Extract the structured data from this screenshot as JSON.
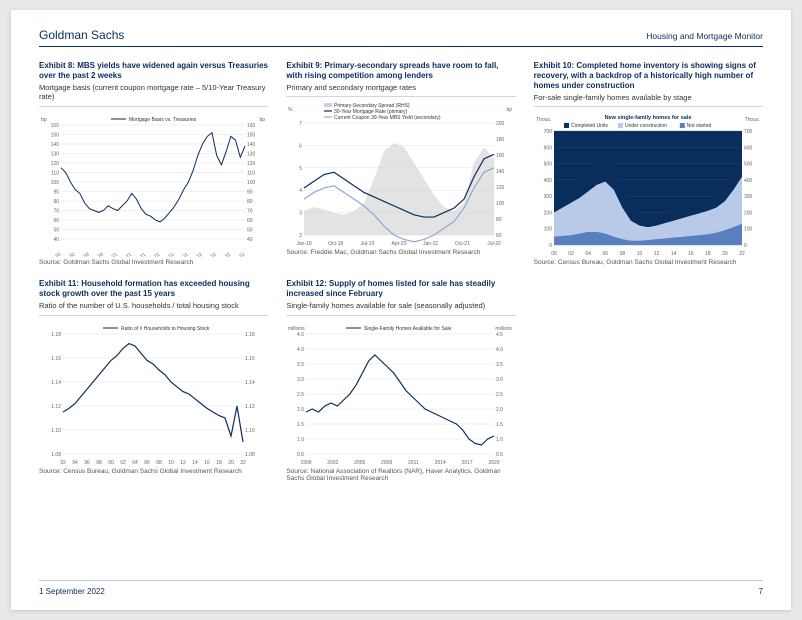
{
  "header": {
    "brand": "Goldman Sachs",
    "section": "Housing and Mortgage Monitor"
  },
  "footer": {
    "date": "1 September 2022",
    "page": "7"
  },
  "colors": {
    "navy": "#0a2e5c",
    "blue": "#2a5db0",
    "lightblue": "#8ea8d8",
    "grayfill": "#d0d0d0",
    "paleblue": "#b8cae8",
    "midblue": "#5a7fc0"
  },
  "ex8": {
    "title": "Exhibit 8: MBS yields have widened again versus Treasuries over the past 2 weeks",
    "sub": "Mortgage basis (current coupon mortgage rate – 5/10-Year Treasury rate)",
    "source": "Source: Goldman Sachs Global Investment Research",
    "type": "line",
    "legend": "Mortgage Basis vs. Treasuries",
    "yunit": "bp",
    "ylim": [
      40,
      160
    ],
    "ytick_step": 10,
    "xlabels": [
      "Jun-20",
      "Aug-20",
      "Oct-20",
      "Dec-20",
      "Feb-21",
      "Apr-21",
      "Jun-21",
      "Aug-21",
      "Oct-21",
      "Dec-21",
      "Feb-22",
      "Apr-22",
      "Jun-22",
      "Aug-22"
    ],
    "series": [
      115,
      110,
      100,
      92,
      88,
      78,
      72,
      70,
      68,
      70,
      75,
      72,
      70,
      75,
      80,
      88,
      82,
      72,
      66,
      64,
      60,
      58,
      62,
      68,
      74,
      82,
      92,
      100,
      112,
      128,
      140,
      148,
      152,
      128,
      118,
      132,
      148,
      144,
      126,
      138
    ]
  },
  "ex9": {
    "title": "Exhibit 9: Primary-secondary spreads have room to fall, with rising competition among lenders",
    "sub": "Primary and secondary mortgage rates",
    "source": "Source: Freddie Mac, Goldman Sachs Global Investment Research",
    "type": "line-dual",
    "yl_unit": "%",
    "yr_unit": "bp",
    "yl_lim": [
      2,
      7
    ],
    "yl_step": 1,
    "yr_lim": [
      60,
      200
    ],
    "yr_step": 20,
    "xlabels": [
      "Jan-18",
      "Oct-18",
      "Jul-19",
      "Apr-20",
      "Jan-21",
      "Oct-21",
      "Jul-22"
    ],
    "legend": [
      "Primary-Secondary Spread (RHS)",
      "30-Year Mortgage Rate (primary)",
      "Current Coupon 30-Year MBS Yield (secondary)"
    ],
    "spread": [
      90,
      95,
      92,
      88,
      85,
      90,
      100,
      130,
      165,
      175,
      170,
      150,
      130,
      110,
      95,
      90,
      100,
      150,
      170,
      155
    ],
    "primary": [
      4.1,
      4.4,
      4.7,
      4.8,
      4.5,
      4.2,
      3.9,
      3.7,
      3.5,
      3.3,
      3.1,
      2.9,
      2.8,
      2.8,
      3.0,
      3.2,
      3.6,
      4.6,
      5.4,
      5.6
    ],
    "secondary": [
      3.6,
      3.9,
      4.1,
      4.2,
      3.9,
      3.6,
      3.3,
      2.9,
      2.4,
      2.0,
      1.8,
      1.7,
      1.8,
      2.0,
      2.3,
      2.6,
      3.2,
      4.1,
      4.8,
      5.0
    ]
  },
  "ex10": {
    "title": "Exhibit 10: Completed home inventory is showing signs of recovery, with a backdrop of a historically high number of homes under construction",
    "sub": "For-sale single-family homes available by stage",
    "source": "Source: Census Bureau, Goldman Sachs Global Investment Research",
    "type": "area-stacked",
    "chart_title": "New single-family homes for sale",
    "yunit": "Thous.",
    "ylim": [
      0,
      700
    ],
    "ytick_step": 100,
    "xlabels": [
      "00",
      "02",
      "04",
      "06",
      "08",
      "10",
      "12",
      "14",
      "16",
      "18",
      "20",
      "22"
    ],
    "legend": [
      "Completed Units",
      "Under construction",
      "Not started"
    ],
    "not_started": [
      50,
      55,
      60,
      70,
      80,
      80,
      70,
      50,
      35,
      25,
      25,
      30,
      35,
      40,
      45,
      50,
      55,
      60,
      65,
      75,
      90,
      110,
      130
    ],
    "under_constr": [
      200,
      230,
      260,
      290,
      330,
      370,
      390,
      340,
      230,
      150,
      120,
      110,
      120,
      135,
      150,
      165,
      180,
      195,
      210,
      230,
      270,
      340,
      420
    ],
    "completed": [
      310,
      340,
      370,
      410,
      460,
      520,
      560,
      490,
      340,
      230,
      180,
      160,
      170,
      190,
      210,
      230,
      250,
      270,
      290,
      310,
      350,
      420,
      520
    ]
  },
  "ex11": {
    "title": "Exhibit 11: Household formation has exceeded housing stock growth over the past 15 years",
    "sub": "Ratio of the number of U.S. households / total housing stock",
    "source": "Source: Census Bureau, Goldman Sachs Global Investment Research",
    "type": "line",
    "legend": "Ratio of # Households to Housing Stock",
    "ylim": [
      1.08,
      1.18
    ],
    "ytick_step": 0.02,
    "xlabels": [
      "92",
      "94",
      "96",
      "98",
      "00",
      "02",
      "04",
      "06",
      "08",
      "10",
      "12",
      "14",
      "16",
      "18",
      "20",
      "22"
    ],
    "series": [
      1.115,
      1.118,
      1.122,
      1.128,
      1.134,
      1.14,
      1.146,
      1.152,
      1.158,
      1.162,
      1.168,
      1.172,
      1.17,
      1.164,
      1.158,
      1.155,
      1.15,
      1.146,
      1.14,
      1.136,
      1.132,
      1.13,
      1.126,
      1.122,
      1.118,
      1.115,
      1.112,
      1.11,
      1.095,
      1.12,
      1.09
    ]
  },
  "ex12": {
    "title": "Exhibit 12: Supply of homes listed for sale has steadily increased since February",
    "sub": "Single-family homes available for sale (seasonally adjusted)",
    "source": "Source: National Association of Realtors (NAR), Haver Analytics, Goldman Sachs Global Investment Research",
    "type": "line",
    "yunit": "millions",
    "legend": "Single-Family Homes Available for Sale",
    "ylim": [
      0.5,
      4.5
    ],
    "ytick_step": 0.5,
    "xlabels": [
      "1999",
      "2002",
      "2005",
      "2008",
      "2011",
      "2014",
      "2017",
      "2020"
    ],
    "series": [
      1.9,
      2.0,
      1.9,
      2.1,
      2.2,
      2.1,
      2.3,
      2.5,
      2.8,
      3.2,
      3.6,
      3.8,
      3.6,
      3.4,
      3.2,
      2.9,
      2.6,
      2.4,
      2.2,
      2.0,
      1.9,
      1.8,
      1.7,
      1.6,
      1.5,
      1.3,
      1.0,
      0.85,
      0.8,
      1.0,
      1.1
    ]
  }
}
